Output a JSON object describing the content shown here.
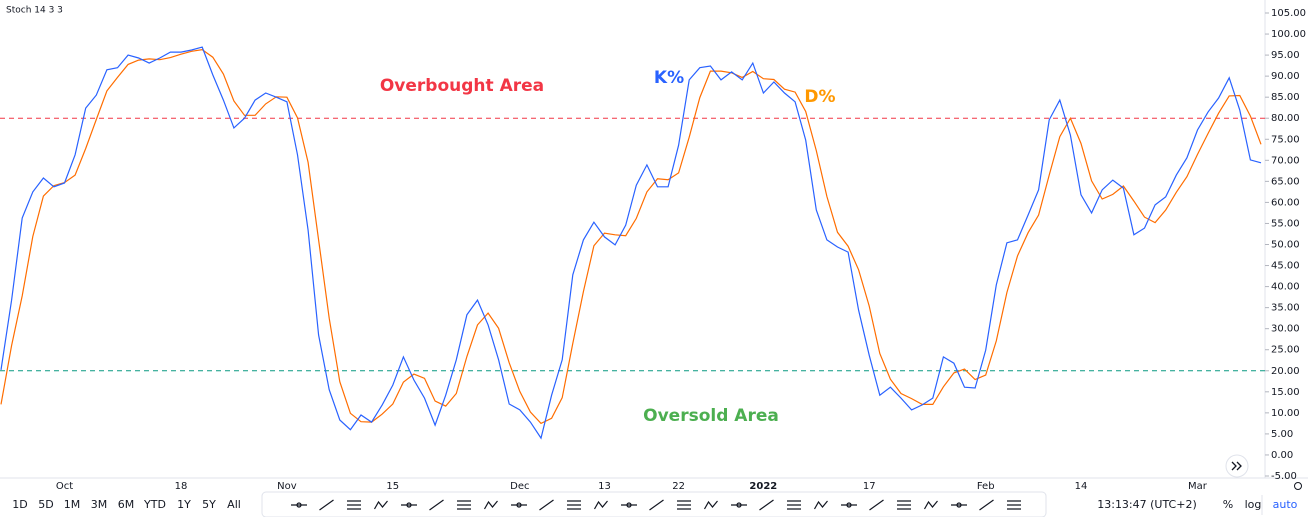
{
  "chart_data": {
    "type": "line",
    "title": "Stoch 14 3 3",
    "categories": [
      null,
      null,
      null,
      null,
      null,
      null,
      "Oct",
      null,
      null,
      null,
      null,
      null,
      null,
      null,
      null,
      null,
      null,
      "18",
      null,
      null,
      null,
      null,
      null,
      null,
      null,
      null,
      null,
      "Nov",
      null,
      null,
      null,
      null,
      null,
      null,
      null,
      null,
      null,
      "15",
      null,
      null,
      null,
      null,
      null,
      null,
      null,
      null,
      null,
      null,
      null,
      "Dec",
      null,
      null,
      null,
      null,
      null,
      null,
      null,
      "13",
      null,
      null,
      null,
      null,
      null,
      null,
      "22",
      null,
      null,
      null,
      null,
      null,
      null,
      null,
      "2022",
      null,
      null,
      null,
      null,
      null,
      null,
      null,
      null,
      null,
      "17",
      null,
      null,
      null,
      null,
      null,
      null,
      null,
      null,
      null,
      null,
      "Feb",
      null,
      null,
      null,
      null,
      null,
      null,
      null,
      null,
      "14",
      null,
      null,
      null,
      null,
      null,
      null,
      null,
      null,
      null,
      null,
      "Mar",
      null,
      null,
      null,
      null,
      null,
      null
    ],
    "series": [
      {
        "name": "K%",
        "color": "#2962ff",
        "values": [
          20.2,
          36.8,
          56.3,
          62.5,
          65.8,
          63.7,
          64.6,
          71.3,
          82.4,
          85.5,
          91.5,
          92,
          95,
          94.3,
          93.1,
          94.3,
          95.7,
          95.7,
          96.2,
          96.9,
          90.3,
          84.3,
          77.7,
          80,
          84.3,
          86,
          85,
          83.9,
          71.3,
          53.4,
          28.5,
          15.5,
          8.3,
          6,
          9.5,
          7.8,
          11.9,
          16.6,
          23.3,
          17.8,
          13.5,
          7.1,
          14.2,
          22.6,
          33.3,
          36.8,
          30.9,
          22.6,
          12.1,
          10.7,
          7.8,
          4,
          14.2,
          22.6,
          42.8,
          51.1,
          55.3,
          51.8,
          49.9,
          54.6,
          64.1,
          68.9,
          63.7,
          63.7,
          73.6,
          89.1,
          92,
          92.4,
          89.1,
          91,
          89.1,
          93.1,
          86,
          88.6,
          86,
          83.9,
          74.8,
          58.2,
          51.1,
          49.4,
          48.2,
          34.4,
          23.7,
          14.2,
          16.1,
          13.5,
          10.7,
          11.9,
          13.5,
          23.3,
          21.8,
          16.1,
          15.9,
          24.9,
          40.4,
          50.4,
          51.1,
          57,
          63,
          79.6,
          84.3,
          76,
          61.8,
          57.5,
          63,
          65.3,
          63.4,
          52.3,
          53.9,
          59.4,
          61.3,
          66.5,
          70.6,
          77.2,
          81.5,
          84.8,
          89.6,
          81.9,
          70.1,
          69.4
        ]
      },
      {
        "name": "D%",
        "color": "#ff6d00",
        "values": [
          12,
          26,
          37.8,
          51.9,
          61.5,
          64,
          64.7,
          66.5,
          72.8,
          79.7,
          86.5,
          89.7,
          92.8,
          93.8,
          94.1,
          93.9,
          94.4,
          95.2,
          95.9,
          96.3,
          94.5,
          90.5,
          84.1,
          80.7,
          80.7,
          83.4,
          85.1,
          85,
          80.1,
          69.5,
          51.1,
          32.5,
          17.4,
          9.9,
          7.9,
          7.8,
          9.7,
          12.1,
          17.3,
          19.2,
          18.2,
          12.8,
          11.6,
          14.6,
          23.4,
          30.9,
          33.7,
          30.1,
          21.9,
          15.1,
          10.2,
          7.5,
          8.7,
          13.6,
          26.5,
          38.8,
          49.7,
          52.7,
          52.3,
          52.1,
          56.2,
          62.5,
          65.6,
          65.4,
          67,
          75.5,
          84.9,
          91.2,
          91.2,
          90.8,
          89.7,
          91.1,
          89.4,
          89.2,
          86.9,
          86.2,
          81.6,
          72.3,
          61.4,
          52.9,
          49.6,
          44,
          35.4,
          24.1,
          18,
          14.6,
          13.4,
          12,
          12,
          16.2,
          19.5,
          20.4,
          17.9,
          19,
          27.1,
          38.6,
          47.3,
          52.8,
          57,
          66.5,
          75.6,
          80,
          74,
          65.1,
          60.8,
          61.9,
          63.9,
          60.3,
          56.5,
          55.2,
          58.2,
          62.4,
          66.1,
          71.4,
          76.4,
          81.2,
          85.3,
          85.4,
          80.5,
          73.8
        ]
      }
    ],
    "ylim": [
      -5,
      105
    ],
    "yticks": [
      {
        "value": 105,
        "label": "105.00"
      },
      {
        "value": 100,
        "label": "100.00"
      },
      {
        "value": 95,
        "label": "95.00"
      },
      {
        "value": 90,
        "label": "90.00"
      },
      {
        "value": 85,
        "label": "85.00"
      },
      {
        "value": 80,
        "label": "80.00"
      },
      {
        "value": 75,
        "label": "75.00"
      },
      {
        "value": 70,
        "label": "70.00"
      },
      {
        "value": 65,
        "label": "65.00"
      },
      {
        "value": 60,
        "label": "60.00"
      },
      {
        "value": 55,
        "label": "55.00"
      },
      {
        "value": 50,
        "label": "50.00"
      },
      {
        "value": 45,
        "label": "45.00"
      },
      {
        "value": 40,
        "label": "40.00"
      },
      {
        "value": 35,
        "label": "35.00"
      },
      {
        "value": 30,
        "label": "30.00"
      },
      {
        "value": 25,
        "label": "25.00"
      },
      {
        "value": 20,
        "label": "20.00"
      },
      {
        "value": 15,
        "label": "15.00"
      },
      {
        "value": 10,
        "label": "10.00"
      },
      {
        "value": 5,
        "label": "5.00"
      },
      {
        "value": 0,
        "label": "0.00"
      },
      {
        "value": -5,
        "label": "-5.00"
      }
    ],
    "grid": false,
    "hlines": [
      {
        "value": 80,
        "color": "#f23645"
      },
      {
        "value": 20,
        "color": "#089981"
      }
    ],
    "annotations": [
      {
        "text": "Overbought Area",
        "color": "#f23645"
      },
      {
        "text": "Oversold Area",
        "color": "#4caf50"
      }
    ]
  },
  "toolbar": {
    "ranges": [
      "1D",
      "5D",
      "1M",
      "3M",
      "6M",
      "YTD",
      "1Y",
      "5Y",
      "All"
    ],
    "time": "13:13:47 (UTC+2)",
    "options": [
      "%",
      "log",
      "auto"
    ]
  }
}
